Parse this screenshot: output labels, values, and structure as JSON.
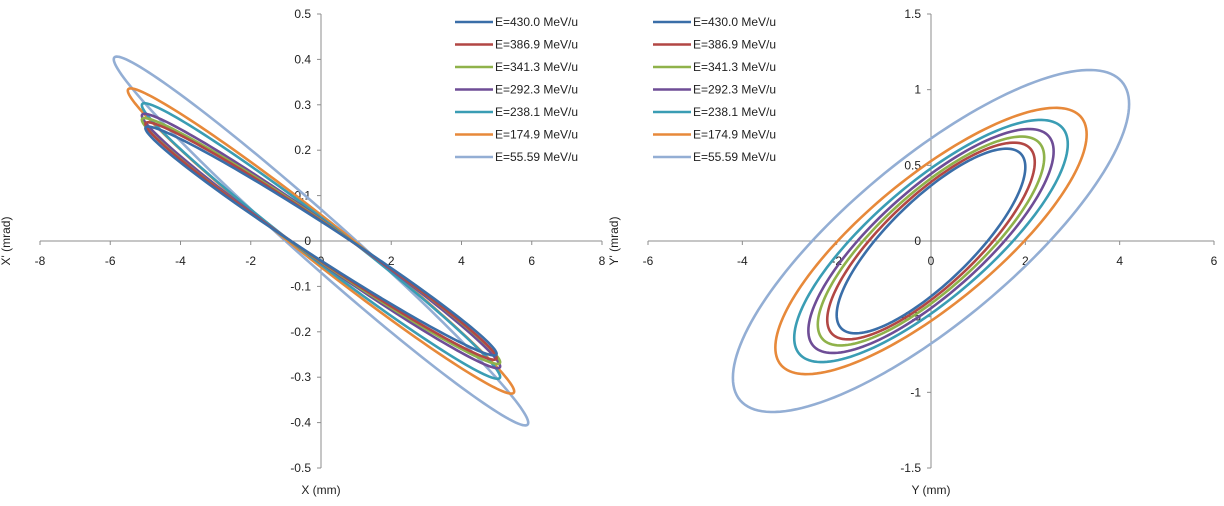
{
  "chart_data": [
    {
      "type": "line",
      "title": "",
      "xlabel": "X (mm)",
      "ylabel": "X' (mrad)",
      "xlim": [
        -8,
        8
      ],
      "ylim": [
        -0.5,
        0.5
      ],
      "xticks": [
        "-8",
        "-6",
        "-4",
        "-2",
        "0",
        "2",
        "4",
        "6",
        "8"
      ],
      "yticks": [
        "-0.5",
        "-0.4",
        "-0.3",
        "-0.2",
        "-0.1",
        "0",
        "0.1",
        "0.2",
        "0.3",
        "0.4",
        "0.5"
      ],
      "legend_position": "top-right",
      "grid": false,
      "series": [
        {
          "name": "E=430.0 MeV/u",
          "color": "#3a6ea8",
          "shape": "ellipse",
          "x_extent": 5.0,
          "xprime_extent": 0.27,
          "slope": -0.055
        },
        {
          "name": "E=386.9 MeV/u",
          "color": "#b24744",
          "shape": "ellipse",
          "x_extent": 5.0,
          "xprime_extent": 0.28,
          "slope": -0.058
        },
        {
          "name": "E=341.3 MeV/u",
          "color": "#8fb24a",
          "shape": "ellipse",
          "x_extent": 5.1,
          "xprime_extent": 0.29,
          "slope": -0.058
        },
        {
          "name": "E=292.3 MeV/u",
          "color": "#6e4d96",
          "shape": "ellipse",
          "x_extent": 5.1,
          "xprime_extent": 0.3,
          "slope": -0.06
        },
        {
          "name": "E=238.1 MeV/u",
          "color": "#3a9db4",
          "shape": "ellipse",
          "x_extent": 5.1,
          "xprime_extent": 0.325,
          "slope": -0.062
        },
        {
          "name": "E=174.9 MeV/u",
          "color": "#e7893a",
          "shape": "ellipse",
          "x_extent": 5.5,
          "xprime_extent": 0.36,
          "slope": -0.066
        },
        {
          "name": "E=55.59 MeV/u",
          "color": "#93aed4",
          "shape": "ellipse",
          "x_extent": 5.9,
          "xprime_extent": 0.435,
          "slope": -0.073
        }
      ]
    },
    {
      "type": "line",
      "title": "",
      "xlabel": "Y (mm)",
      "ylabel": "Y' (mrad)",
      "xlim": [
        -6,
        6
      ],
      "ylim": [
        -1.5,
        1.5
      ],
      "xticks": [
        "-6",
        "-4",
        "-2",
        "0",
        "2",
        "4",
        "6"
      ],
      "yticks": [
        "-1.5",
        "-1",
        "-0.5",
        "0",
        "0.5",
        "1",
        "1.5"
      ],
      "legend_position": "top-left",
      "grid": false,
      "series": [
        {
          "name": "E=430.0 MeV/u",
          "color": "#3a6ea8",
          "shape": "ellipse",
          "y_extent": 2.0,
          "yprime_extent": 0.61,
          "slope": 0.28
        },
        {
          "name": "E=386.9 MeV/u",
          "color": "#b24744",
          "shape": "ellipse",
          "y_extent": 2.2,
          "yprime_extent": 0.65,
          "slope": 0.28
        },
        {
          "name": "E=341.3 MeV/u",
          "color": "#8fb24a",
          "shape": "ellipse",
          "y_extent": 2.4,
          "yprime_extent": 0.69,
          "slope": 0.28
        },
        {
          "name": "E=292.3 MeV/u",
          "color": "#6e4d96",
          "shape": "ellipse",
          "y_extent": 2.6,
          "yprime_extent": 0.74,
          "slope": 0.28
        },
        {
          "name": "E=238.1 MeV/u",
          "color": "#3a9db4",
          "shape": "ellipse",
          "y_extent": 2.9,
          "yprime_extent": 0.8,
          "slope": 0.28
        },
        {
          "name": "E=174.9 MeV/u",
          "color": "#e7893a",
          "shape": "ellipse",
          "y_extent": 3.3,
          "yprime_extent": 0.88,
          "slope": 0.28
        },
        {
          "name": "E=55.59 MeV/u",
          "color": "#93aed4",
          "shape": "ellipse",
          "y_extent": 4.2,
          "yprime_extent": 1.13,
          "slope": 0.28
        }
      ]
    }
  ]
}
